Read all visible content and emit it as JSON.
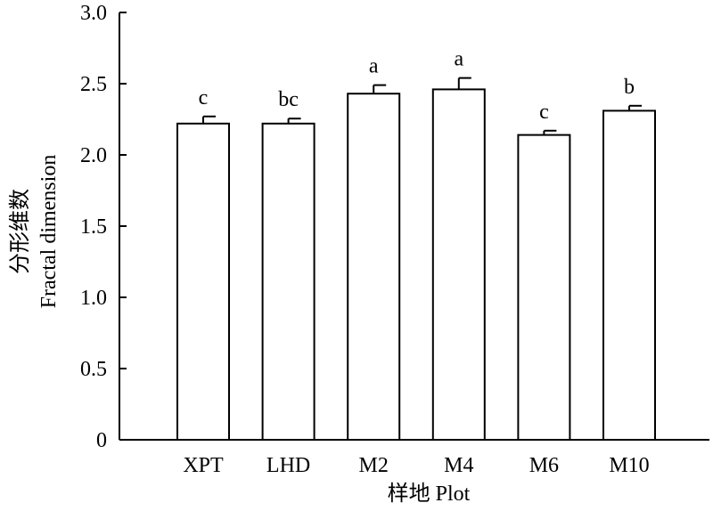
{
  "chart_data": {
    "type": "bar",
    "categories": [
      "XPT",
      "LHD",
      "M2",
      "M4",
      "M6",
      "M10"
    ],
    "values": [
      2.22,
      2.22,
      2.43,
      2.46,
      2.14,
      2.31
    ],
    "errors": [
      0.05,
      0.035,
      0.06,
      0.08,
      0.03,
      0.035
    ],
    "significance": [
      "c",
      "bc",
      "a",
      "a",
      "c",
      "b"
    ],
    "xlabel": "样地 Plot",
    "ylabel_cn": "分形维数",
    "ylabel_en": "Fractal dimension",
    "ylim": [
      0,
      3.0
    ],
    "yticks": [
      0,
      0.5,
      1.0,
      1.5,
      2.0,
      2.5,
      3.0
    ],
    "ytick_labels": [
      "0",
      "0.5",
      "1.0",
      "1.5",
      "2.0",
      "2.5",
      "3.0"
    ],
    "grid": false,
    "bar_fill": "#ffffff",
    "bar_stroke": "#000000"
  }
}
